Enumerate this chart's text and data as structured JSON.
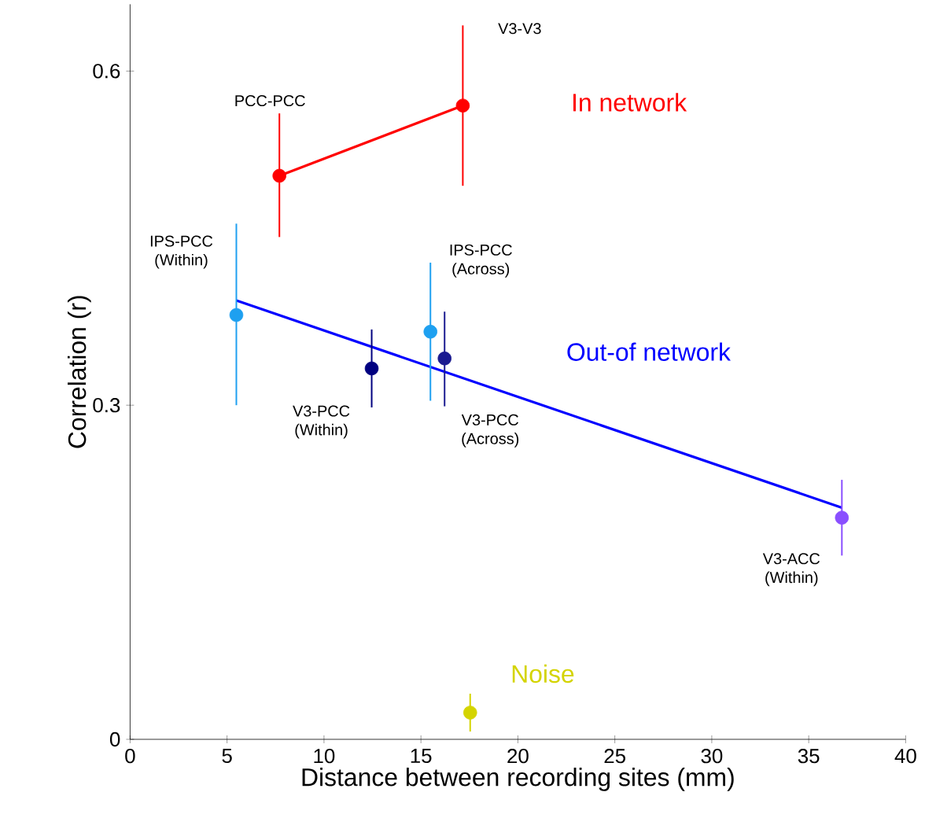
{
  "chart_data": {
    "type": "scatter",
    "xlabel": "Distance between recording sites (mm)",
    "ylabel": "Correlation (r)",
    "xlim": [
      0,
      40
    ],
    "xticks": [
      0,
      5,
      10,
      15,
      20,
      25,
      30,
      35,
      40
    ],
    "ylim": [
      0,
      0.66
    ],
    "yticks": [
      0,
      0.3,
      0.6
    ],
    "series": [
      {
        "type": "line",
        "marker": "none",
        "name": "In network",
        "color": "#ff0000",
        "x": [
          7.7,
          17.16
        ],
        "values": [
          0.506,
          0.569
        ]
      },
      {
        "type": "line",
        "marker": "none",
        "name": "Out-of network",
        "color": "#0000ff",
        "x": [
          5.48,
          36.71
        ],
        "values": [
          0.394,
          0.208
        ]
      },
      {
        "marker": "circle",
        "colors": [
          "#ff0000",
          "#ff0000",
          "#1ea0f0",
          "#1ea0f0",
          "#000080",
          "#1a1a90",
          "#8a4fff"
        ],
        "x": [
          7.7,
          17.16,
          5.48,
          15.49,
          12.46,
          16.22,
          36.71
        ],
        "values": [
          0.506,
          0.569,
          0.381,
          0.366,
          0.333,
          0.342,
          0.199
        ],
        "errors": [
          [
            0.451,
            0.562
          ],
          [
            0.497,
            0.641
          ],
          [
            0.3,
            0.463
          ],
          [
            0.304,
            0.428
          ],
          [
            0.298,
            0.368
          ],
          [
            0.299,
            0.384
          ],
          [
            0.165,
            0.233
          ]
        ]
      },
      {
        "marker": "circle",
        "name": "Noise",
        "color": "#d4d400",
        "x": [
          17.54
        ],
        "values": [
          0.024
        ],
        "errors": [
          [
            0.007,
            0.041
          ]
        ]
      }
    ],
    "annotations": [
      "PCC-PCC",
      "V3-V3",
      "IPS-PCC (Within)",
      "IPS-PCC (Across)",
      "V3-PCC (Within)",
      "V3-PCC (Across)",
      "V3-ACC (Within)"
    ]
  }
}
